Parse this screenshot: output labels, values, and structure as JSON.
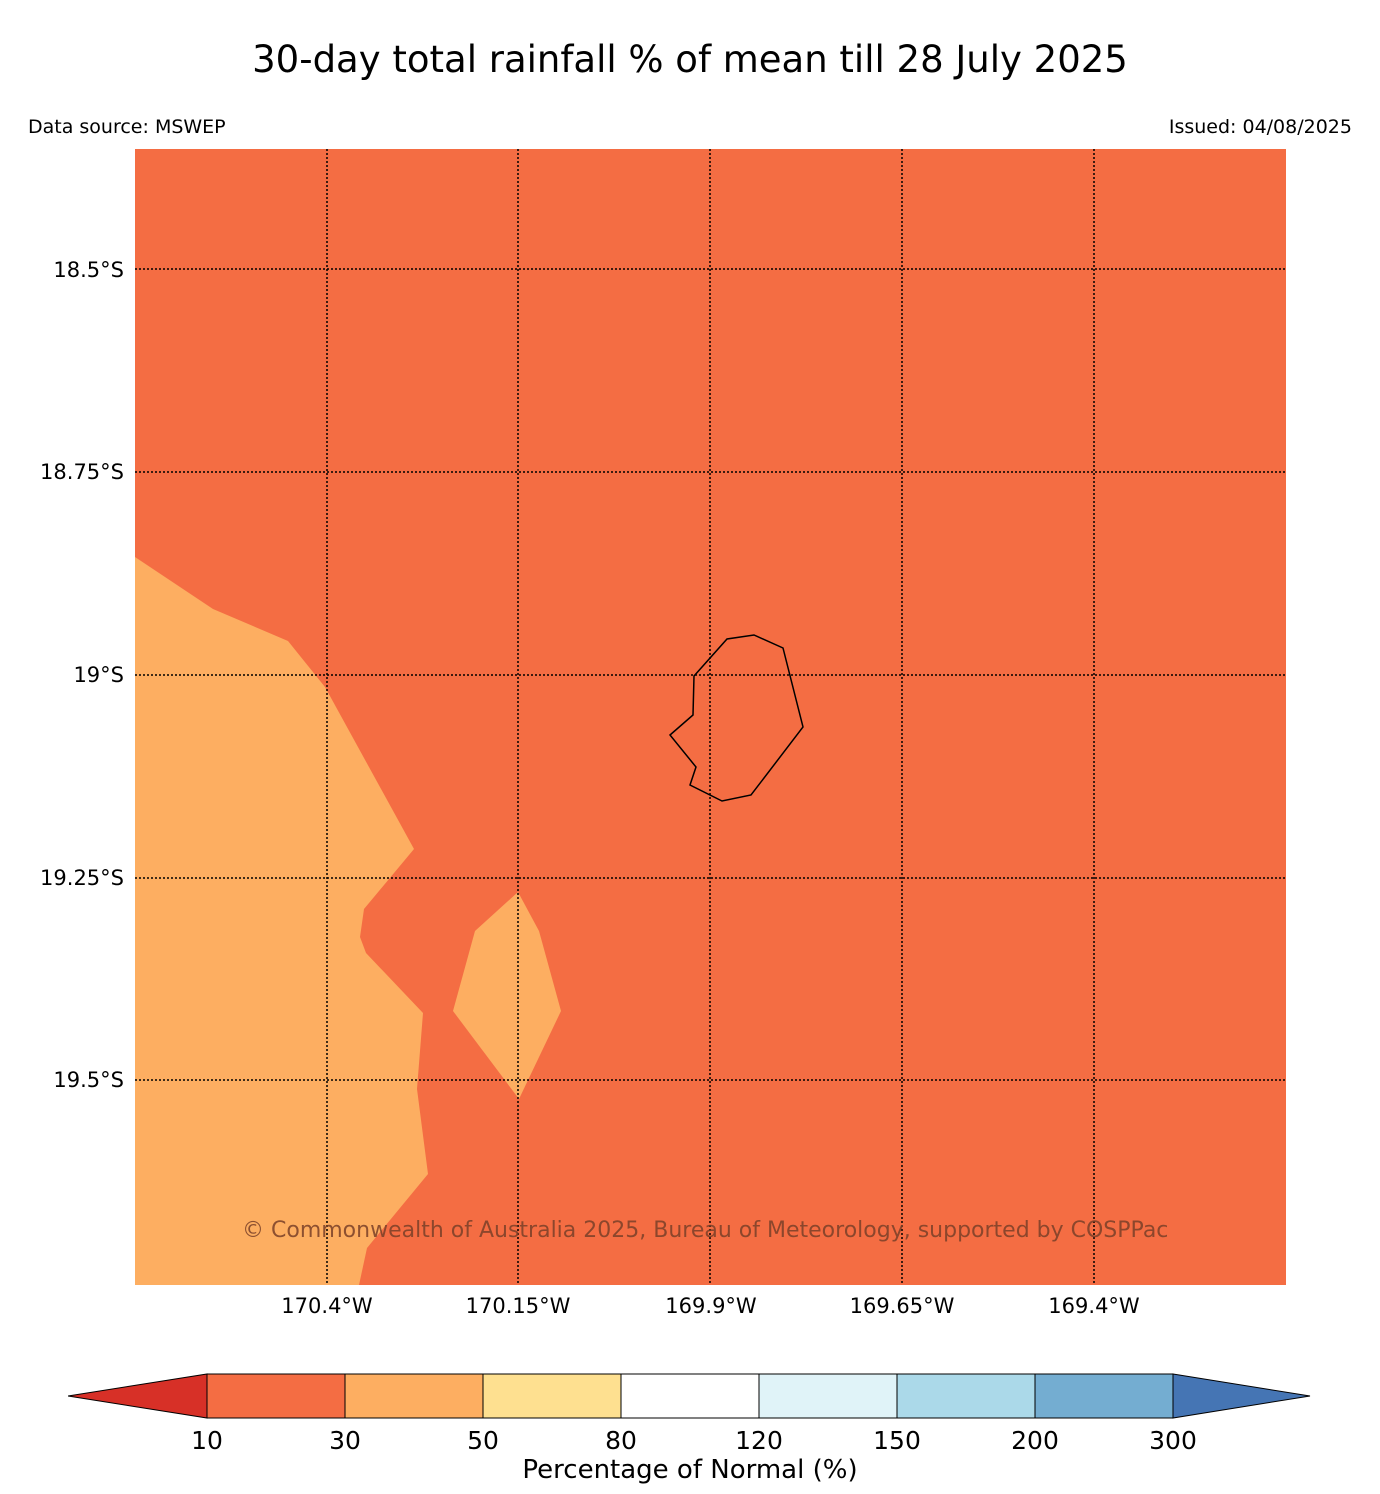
{
  "header": {
    "title": "30-day total rainfall % of mean till 28 July 2025",
    "source": "Data source: MSWEP",
    "issued": "Issued: 04/08/2025"
  },
  "map": {
    "latitude_labels": [
      "18.5°S",
      "18.75°S",
      "19°S",
      "19.25°S",
      "19.5°S"
    ],
    "longitude_labels": [
      "170.4°W",
      "170.15°W",
      "169.9°W",
      "169.65°W",
      "169.4°W"
    ],
    "background_color": "#f46d43",
    "zone_colors": {
      "10-30": "#f46d43",
      "30-50": "#fdae61"
    },
    "copyright": "© Commonwealth of Australia 2025, Bureau of Meteorology, supported by COSPPac",
    "island": "Niue"
  },
  "colorbar": {
    "ticks": [
      "10",
      "30",
      "50",
      "80",
      "120",
      "150",
      "200",
      "300"
    ],
    "colors": [
      "#d73027",
      "#f46d43",
      "#fdae61",
      "#fee090",
      "#ffffff",
      "#e0f3f8",
      "#abd9e9",
      "#74add1",
      "#4575b4"
    ],
    "label": "Percentage of Normal (%)"
  }
}
